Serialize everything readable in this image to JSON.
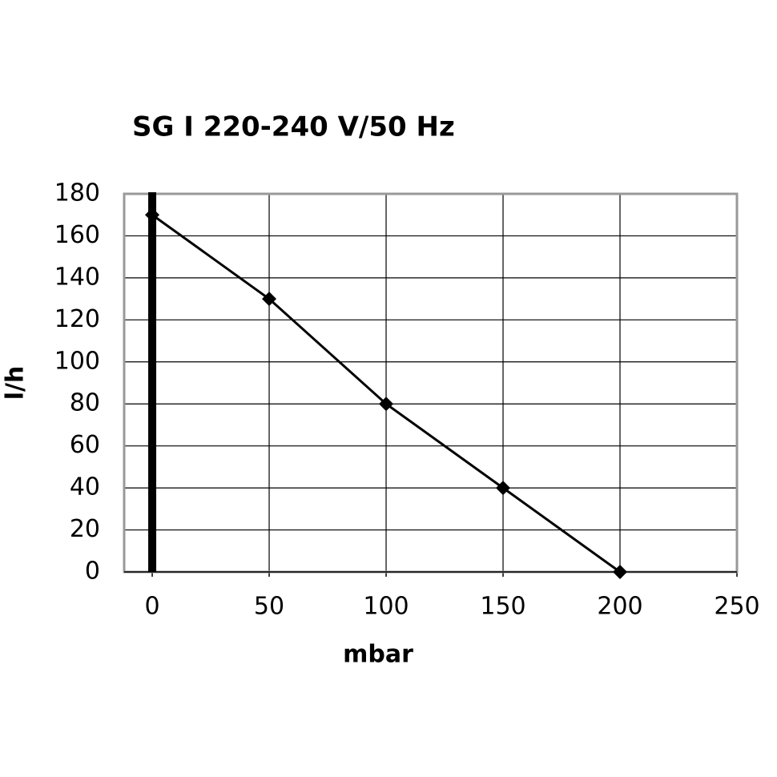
{
  "chart_data": {
    "type": "line",
    "title": "SG I 220-240 V/50 Hz",
    "x_label": "mbar",
    "y_label": "l/h",
    "x": [
      0,
      50,
      100,
      150,
      200
    ],
    "series": [
      {
        "name": "SG I 220-240 V/50 Hz",
        "color": "#000000",
        "values": [
          170,
          130,
          80,
          40,
          0
        ]
      }
    ],
    "xlim": [
      -12,
      250
    ],
    "xticks": [
      0,
      50,
      100,
      150,
      200,
      250
    ],
    "ylim": [
      0,
      180
    ],
    "yticks": [
      0,
      20,
      40,
      60,
      80,
      100,
      120,
      140,
      160,
      180
    ],
    "grid": true
  }
}
